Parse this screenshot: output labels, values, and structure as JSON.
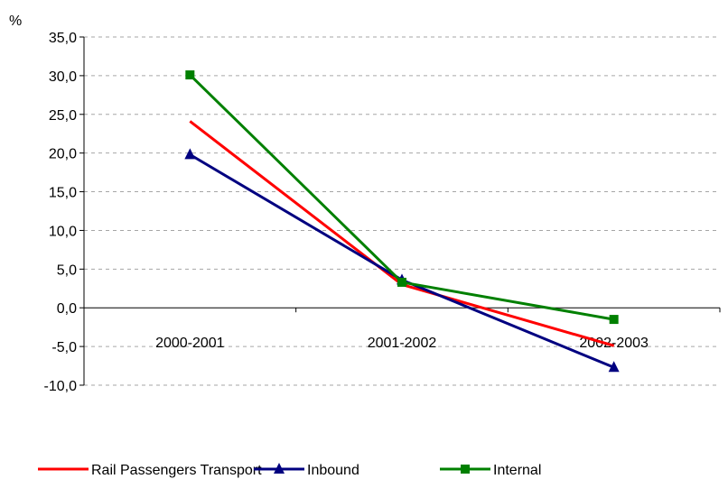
{
  "chart_data": {
    "type": "line",
    "ylabel": "%",
    "categories": [
      "2000-2001",
      "2001-2002",
      "2002-2003"
    ],
    "ylim": [
      -10,
      35
    ],
    "yticks": [
      35,
      30,
      25,
      20,
      15,
      10,
      5,
      0,
      -5,
      -10
    ],
    "ytick_labels": [
      "35,0",
      "30,0",
      "25,0",
      "20,0",
      "15,0",
      "10,0",
      "5,0",
      "0,0",
      "-5,0",
      "-10,0"
    ],
    "grid": true,
    "legend_position": "bottom",
    "series": [
      {
        "name": "Rail Passengers Transport",
        "values": [
          24.1,
          3.0,
          -4.9
        ],
        "color": "#ff0000",
        "marker": "none"
      },
      {
        "name": "Inbound",
        "values": [
          19.8,
          3.6,
          -7.7
        ],
        "color": "#000080",
        "marker": "triangle"
      },
      {
        "name": "Internal",
        "values": [
          30.1,
          3.3,
          -1.5
        ],
        "color": "#008000",
        "marker": "square"
      }
    ]
  }
}
